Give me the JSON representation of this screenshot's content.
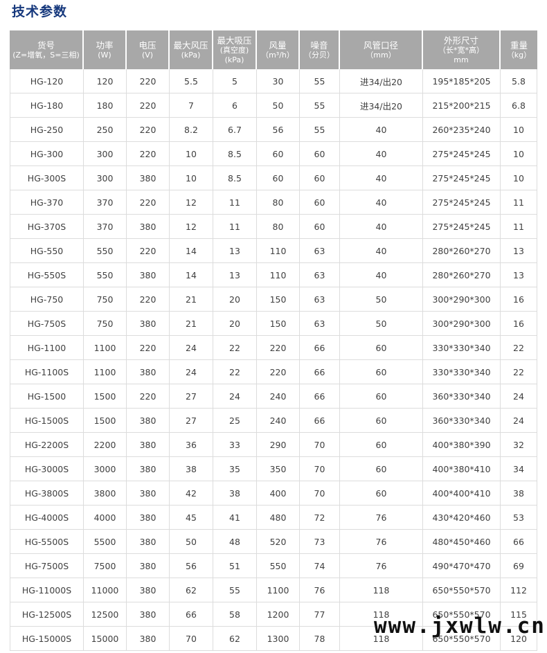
{
  "page": {
    "title": "技术参数"
  },
  "colors": {
    "title": "#17397d",
    "header_bg": "#a8a8a8",
    "header_text": "#ffffff",
    "grid_line": "#dcdcdc",
    "body_text": "#404040",
    "watermark": "#101010"
  },
  "watermark": {
    "text": "www.jxwlw.cn"
  },
  "table": {
    "columns": [
      {
        "key": "model",
        "lines": [
          "货号",
          "(Z=增氧，S=三相)"
        ]
      },
      {
        "key": "power",
        "lines": [
          "功率",
          "(W)"
        ]
      },
      {
        "key": "voltage",
        "lines": [
          "电压",
          "(V)"
        ]
      },
      {
        "key": "max-pressure",
        "lines": [
          "最大风压",
          "(kPa)"
        ]
      },
      {
        "key": "max-suction",
        "lines": [
          "最大吸压",
          "(真空度)",
          "(kPa)"
        ]
      },
      {
        "key": "air-volume",
        "lines": [
          "风量",
          "（m³/h）"
        ]
      },
      {
        "key": "noise",
        "lines": [
          "噪音",
          "（分贝）"
        ]
      },
      {
        "key": "duct-diameter",
        "lines": [
          "风管口径",
          "（mm）"
        ]
      },
      {
        "key": "dimensions",
        "lines": [
          "外形尺寸",
          "（长*宽*高）",
          "mm"
        ]
      },
      {
        "key": "weight",
        "lines": [
          "重量",
          "（kg）"
        ]
      }
    ],
    "rows": [
      [
        "HG-120",
        "120",
        "220",
        "5.5",
        "5",
        "30",
        "55",
        "进34/出20",
        "195*185*205",
        "5.8"
      ],
      [
        "HG-180",
        "180",
        "220",
        "7",
        "6",
        "50",
        "55",
        "进34/出20",
        "215*200*215",
        "6.8"
      ],
      [
        "HG-250",
        "250",
        "220",
        "8.2",
        "6.7",
        "56",
        "55",
        "40",
        "260*235*240",
        "10"
      ],
      [
        "HG-300",
        "300",
        "220",
        "10",
        "8.5",
        "60",
        "60",
        "40",
        "275*245*245",
        "10"
      ],
      [
        "HG-300S",
        "300",
        "380",
        "10",
        "8.5",
        "60",
        "60",
        "40",
        "275*245*245",
        "10"
      ],
      [
        "HG-370",
        "370",
        "220",
        "12",
        "11",
        "80",
        "60",
        "40",
        "275*245*245",
        "11"
      ],
      [
        "HG-370S",
        "370",
        "380",
        "12",
        "11",
        "80",
        "60",
        "40",
        "275*245*245",
        "11"
      ],
      [
        "HG-550",
        "550",
        "220",
        "14",
        "13",
        "110",
        "63",
        "40",
        "280*260*270",
        "13"
      ],
      [
        "HG-550S",
        "550",
        "380",
        "14",
        "13",
        "110",
        "63",
        "40",
        "280*260*270",
        "13"
      ],
      [
        "HG-750",
        "750",
        "220",
        "21",
        "20",
        "150",
        "63",
        "50",
        "300*290*300",
        "16"
      ],
      [
        "HG-750S",
        "750",
        "380",
        "21",
        "20",
        "150",
        "63",
        "50",
        "300*290*300",
        "16"
      ],
      [
        "HG-1100",
        "1100",
        "220",
        "24",
        "22",
        "220",
        "66",
        "60",
        "330*330*340",
        "22"
      ],
      [
        "HG-1100S",
        "1100",
        "380",
        "24",
        "22",
        "220",
        "66",
        "60",
        "330*330*340",
        "22"
      ],
      [
        "HG-1500",
        "1500",
        "220",
        "27",
        "24",
        "240",
        "66",
        "60",
        "360*330*340",
        "24"
      ],
      [
        "HG-1500S",
        "1500",
        "380",
        "27",
        "25",
        "240",
        "66",
        "60",
        "360*330*340",
        "24"
      ],
      [
        "HG-2200S",
        "2200",
        "380",
        "36",
        "33",
        "290",
        "70",
        "60",
        "400*380*390",
        "32"
      ],
      [
        "HG-3000S",
        "3000",
        "380",
        "38",
        "35",
        "350",
        "70",
        "60",
        "400*380*410",
        "34"
      ],
      [
        "HG-3800S",
        "3800",
        "380",
        "42",
        "38",
        "400",
        "70",
        "60",
        "400*400*410",
        "38"
      ],
      [
        "HG-4000S",
        "4000",
        "380",
        "45",
        "41",
        "480",
        "72",
        "76",
        "430*420*460",
        "53"
      ],
      [
        "HG-5500S",
        "5500",
        "380",
        "50",
        "48",
        "520",
        "73",
        "76",
        "480*450*460",
        "66"
      ],
      [
        "HG-7500S",
        "7500",
        "380",
        "56",
        "51",
        "550",
        "74",
        "76",
        "490*470*470",
        "69"
      ],
      [
        "HG-11000S",
        "11000",
        "380",
        "62",
        "55",
        "1100",
        "76",
        "118",
        "650*550*570",
        "112"
      ],
      [
        "HG-12500S",
        "12500",
        "380",
        "66",
        "58",
        "1200",
        "77",
        "118",
        "650*550*570",
        "115"
      ],
      [
        "HG-15000S",
        "15000",
        "380",
        "70",
        "62",
        "1300",
        "78",
        "118",
        "650*550*570",
        "120"
      ]
    ]
  }
}
